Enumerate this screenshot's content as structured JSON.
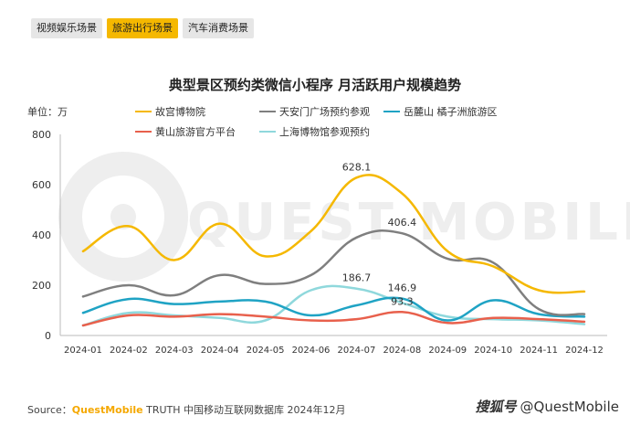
{
  "tabs": [
    {
      "label": "视频娱乐场景",
      "active": false
    },
    {
      "label": "旅游出行场景",
      "active": true
    },
    {
      "label": "汽车消费场景",
      "active": false
    }
  ],
  "source": {
    "prefix": "Source：",
    "brand": "QuestMobile",
    "text": " TRUTH 中国移动互联网数据库 2024年12月"
  },
  "watermark": {
    "icon_text": "搜狐号",
    "text": "@QuestMobile"
  },
  "background_watermark": "QUEST MOBILE",
  "colors": {
    "accent": "#f5b800"
  },
  "chart_data": {
    "type": "line",
    "title": "典型景区预约类微信小程序 月活跃用户规模趋势",
    "unit_label": "单位：万",
    "ylim": [
      0,
      800
    ],
    "yticks": [
      "0",
      "200",
      "400",
      "600",
      "800"
    ],
    "categories": [
      "2024-01",
      "2024-02",
      "2024-03",
      "2024-04",
      "2024-05",
      "2024-06",
      "2024-07",
      "2024-08",
      "2024-09",
      "2024-10",
      "2024-11",
      "2024-12"
    ],
    "series": [
      {
        "name": "故宫博物院",
        "color": "#f5b800",
        "values": [
          335,
          435,
          300,
          445,
          315,
          415,
          628.1,
          565,
          335,
          275,
          180,
          175
        ]
      },
      {
        "name": "天安门广场预约参观",
        "color": "#7f7f7f",
        "values": [
          155,
          200,
          160,
          240,
          205,
          240,
          390,
          406.4,
          305,
          290,
          105,
          85
        ]
      },
      {
        "name": "岳麓山 橘子洲旅游区",
        "color": "#1fa3c4",
        "values": [
          90,
          145,
          125,
          135,
          135,
          80,
          120,
          146.9,
          60,
          140,
          85,
          75
        ]
      },
      {
        "name": "黄山旅游官方平台",
        "color": "#e8604c",
        "values": [
          40,
          80,
          75,
          85,
          75,
          60,
          65,
          93.3,
          50,
          70,
          65,
          55
        ]
      },
      {
        "name": "上海博物馆参观预约",
        "color": "#8fd8dc",
        "values": [
          40,
          90,
          80,
          70,
          60,
          180,
          186.7,
          130,
          75,
          65,
          60,
          45
        ]
      }
    ],
    "data_labels": [
      {
        "series": 0,
        "index": 6,
        "text": "628.1"
      },
      {
        "series": 1,
        "index": 7,
        "text": "406.4"
      },
      {
        "series": 4,
        "index": 6,
        "text": "186.7"
      },
      {
        "series": 2,
        "index": 7,
        "text": "146.9"
      },
      {
        "series": 3,
        "index": 7,
        "text": "93.3"
      }
    ],
    "legend_position": "top"
  }
}
